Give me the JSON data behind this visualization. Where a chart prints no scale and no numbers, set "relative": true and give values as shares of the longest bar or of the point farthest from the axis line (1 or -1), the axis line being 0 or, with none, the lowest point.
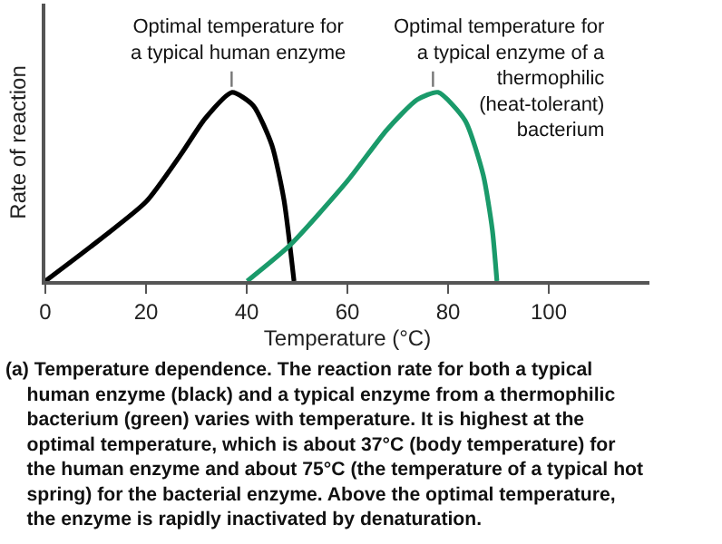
{
  "chart_data": {
    "type": "line",
    "relative": true,
    "xlabel": "Temperature (°C)",
    "ylabel": "Rate of reaction",
    "xlim": [
      0,
      120
    ],
    "xticks": [
      0,
      20,
      40,
      60,
      80,
      100
    ],
    "marker": "none",
    "line_style": "solid",
    "series": [
      {
        "color": "#000000",
        "x": [
          0,
          8.9,
          20,
          26.9,
          31.7,
          37.1,
          41.3,
          45,
          47.4,
          49.4
        ],
        "values": [
          0,
          0.18,
          0.42,
          0.67,
          0.86,
          1,
          0.93,
          0.72,
          0.43,
          0
        ]
      },
      {
        "color": "#1a9a6a",
        "x": [
          40.1,
          48.6,
          60,
          67.8,
          73.8,
          78,
          83.4,
          87,
          88.8,
          89.7
        ],
        "values": [
          0,
          0.19,
          0.53,
          0.8,
          0.96,
          1,
          0.85,
          0.56,
          0.27,
          0
        ]
      }
    ],
    "annotations": [
      {
        "text": "Optimal temperature for\na typical human enzyme",
        "x": 37,
        "y": 1
      },
      {
        "text": "Optimal temperature for\na typical enzyme of a\nthermophilic\n(heat-tolerant)\nbacterium",
        "x": 77,
        "y": 1
      },
      "(a) Temperature dependence.",
      "The reaction rate for both a typical human enzyme (black) and a typical enzyme from a thermophilic bacterium (green) varies with temperature. It is highest at the optimal temperature, which is about 37°C (body temperature) for the human enzyme and about 75°C (the temperature of a typical hot spring) for the bacterial enzyme. Above the optimal temperature, the enzyme is rapidly inactivated by denaturation."
    ]
  }
}
